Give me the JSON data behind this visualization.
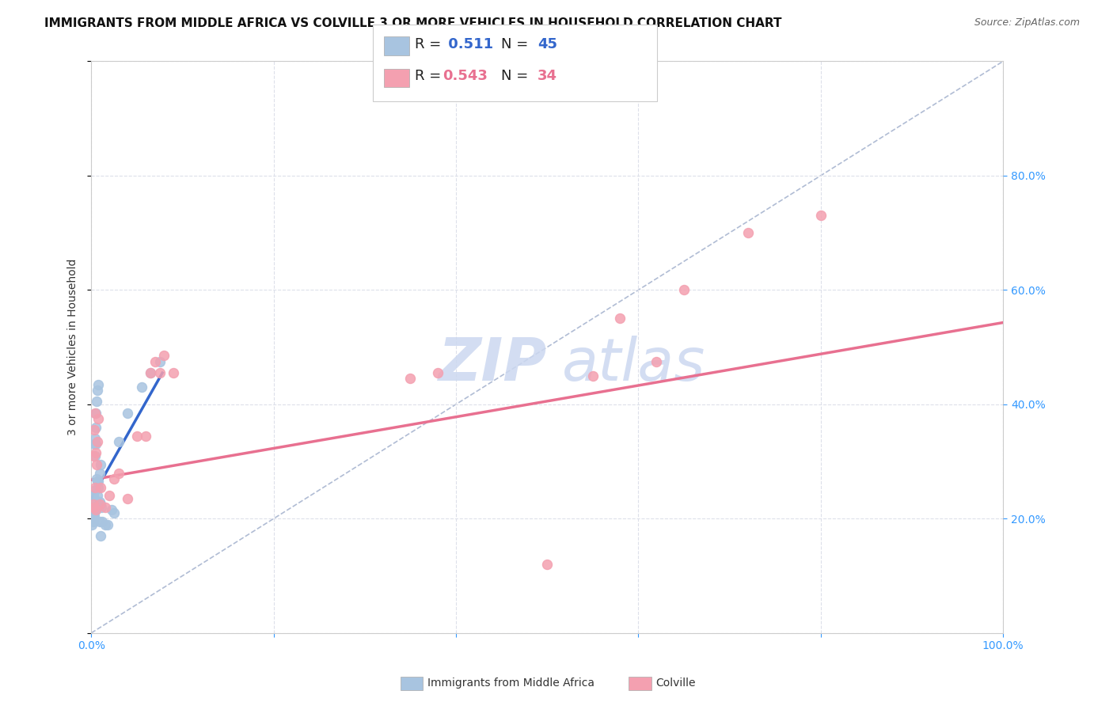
{
  "title": "IMMIGRANTS FROM MIDDLE AFRICA VS COLVILLE 3 OR MORE VEHICLES IN HOUSEHOLD CORRELATION CHART",
  "source": "Source: ZipAtlas.com",
  "ylabel": "3 or more Vehicles in Household",
  "xlim": [
    0,
    1.0
  ],
  "ylim": [
    0,
    1.0
  ],
  "blue_R": "0.511",
  "blue_N": "45",
  "pink_R": "0.543",
  "pink_N": "34",
  "blue_color": "#a8c4e0",
  "pink_color": "#f4a0b0",
  "blue_line_color": "#3366cc",
  "pink_line_color": "#e87090",
  "diagonal_color": "#b0bcd4",
  "watermark_color": "#ccd8f0",
  "grid_color": "#dde0ea",
  "background_color": "#ffffff",
  "title_fontsize": 11,
  "axis_label_fontsize": 10,
  "tick_fontsize": 10,
  "blue_scatter_x": [
    0.002,
    0.003,
    0.004,
    0.005,
    0.006,
    0.007,
    0.008,
    0.009,
    0.01,
    0.011,
    0.001,
    0.002,
    0.003,
    0.004,
    0.005,
    0.006,
    0.007,
    0.008,
    0.009,
    0.01,
    0.001,
    0.002,
    0.003,
    0.004,
    0.005,
    0.006,
    0.007,
    0.008,
    0.009,
    0.01,
    0.001,
    0.002,
    0.003,
    0.004,
    0.005,
    0.012,
    0.015,
    0.018,
    0.022,
    0.025,
    0.03,
    0.04,
    0.055,
    0.065,
    0.075
  ],
  "blue_scatter_y": [
    0.22,
    0.235,
    0.25,
    0.215,
    0.22,
    0.24,
    0.265,
    0.23,
    0.225,
    0.22,
    0.215,
    0.2,
    0.21,
    0.31,
    0.33,
    0.27,
    0.265,
    0.255,
    0.28,
    0.295,
    0.215,
    0.24,
    0.205,
    0.22,
    0.385,
    0.405,
    0.425,
    0.435,
    0.195,
    0.17,
    0.19,
    0.195,
    0.33,
    0.34,
    0.36,
    0.195,
    0.19,
    0.19,
    0.215,
    0.21,
    0.335,
    0.385,
    0.43,
    0.455,
    0.475
  ],
  "pink_scatter_x": [
    0.002,
    0.003,
    0.004,
    0.005,
    0.006,
    0.007,
    0.008,
    0.009,
    0.01,
    0.015,
    0.002,
    0.003,
    0.004,
    0.005,
    0.02,
    0.025,
    0.03,
    0.04,
    0.05,
    0.06,
    0.065,
    0.07,
    0.075,
    0.08,
    0.09,
    0.35,
    0.38,
    0.55,
    0.58,
    0.62,
    0.65,
    0.72,
    0.8,
    0.5
  ],
  "pink_scatter_y": [
    0.225,
    0.22,
    0.255,
    0.315,
    0.295,
    0.335,
    0.375,
    0.225,
    0.255,
    0.22,
    0.31,
    0.355,
    0.385,
    0.215,
    0.24,
    0.27,
    0.28,
    0.235,
    0.345,
    0.345,
    0.455,
    0.475,
    0.455,
    0.485,
    0.455,
    0.445,
    0.455,
    0.45,
    0.55,
    0.475,
    0.6,
    0.7,
    0.73,
    0.12
  ],
  "blue_trend_x": [
    0.0,
    0.078
  ],
  "blue_trend_y": [
    0.235,
    0.455
  ],
  "pink_trend_x": [
    0.0,
    1.0
  ],
  "pink_trend_y": [
    0.268,
    0.543
  ]
}
